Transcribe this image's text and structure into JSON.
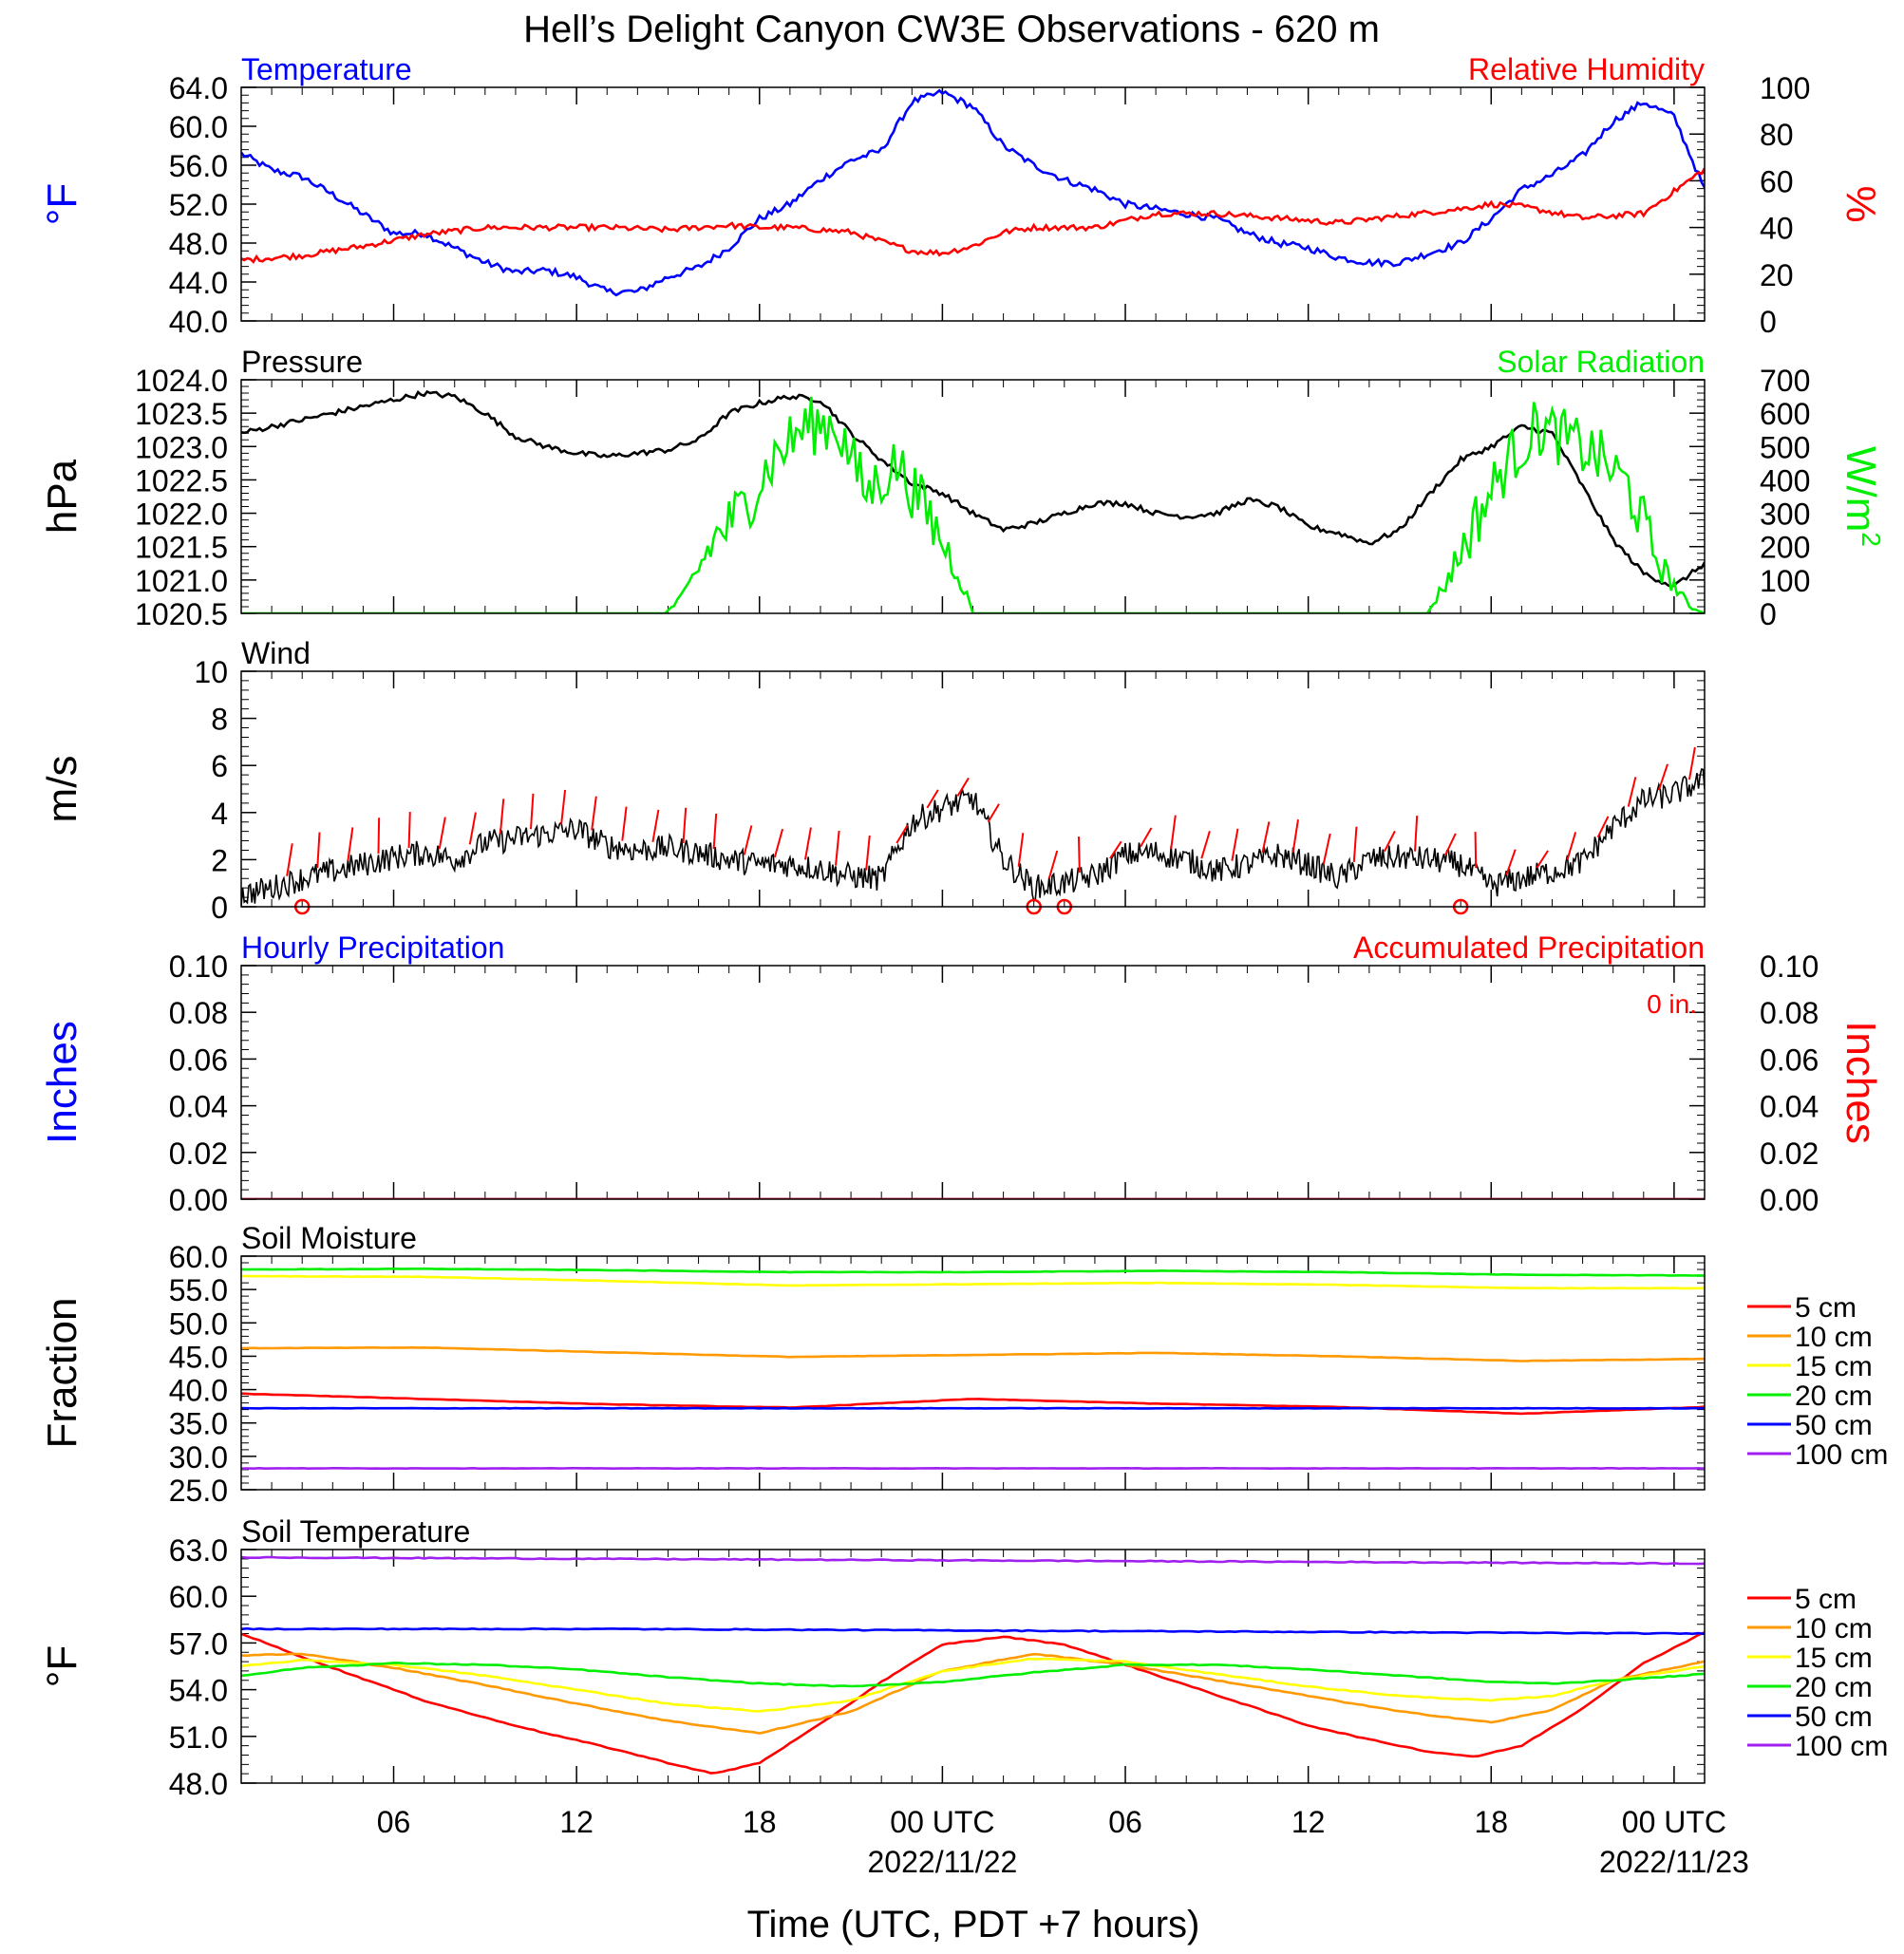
{
  "title": "Hell’s Delight Canyon CW3E Observations - 620 m",
  "x_axis": {
    "title": "Time (UTC, PDT +7 hours)",
    "ticks": [
      {
        "label": "06",
        "sub": "",
        "h": 6
      },
      {
        "label": "12",
        "sub": "",
        "h": 12
      },
      {
        "label": "18",
        "sub": "",
        "h": 18
      },
      {
        "label": "00 UTC",
        "sub": "2022/11/22",
        "h": 24
      },
      {
        "label": "06",
        "sub": "",
        "h": 30
      },
      {
        "label": "12",
        "sub": "",
        "h": 36
      },
      {
        "label": "18",
        "sub": "",
        "h": 42
      },
      {
        "label": "00 UTC",
        "sub": "2022/11/23",
        "h": 48
      }
    ],
    "range_hours": [
      1,
      49
    ]
  },
  "colors": {
    "blue": "#0000ff",
    "red": "#ff0000",
    "green": "#00ee00",
    "black": "#000000",
    "d5": "#ff0000",
    "d10": "#ff9900",
    "d15": "#ffff00",
    "d20": "#00ee00",
    "d50": "#0000ff",
    "d100": "#a020f0"
  },
  "chart_data": [
    {
      "type": "line",
      "panel": "temperature_rh",
      "left_title": "Temperature",
      "right_title": "Relative Humidity",
      "ylabel_left": "°F",
      "ylabel_right": "%",
      "ylim_left": [
        40,
        64
      ],
      "ylim_right": [
        0,
        100
      ],
      "yticks_left": [
        "40.0",
        "44.0",
        "48.0",
        "52.0",
        "56.0",
        "60.0",
        "64.0"
      ],
      "yticks_right": [
        "0",
        "20",
        "40",
        "60",
        "80",
        "100"
      ],
      "series": [
        {
          "axis": "left",
          "color": "blue",
          "x": [
            1,
            2,
            3,
            4,
            5,
            6,
            7,
            8,
            9,
            10,
            11,
            12,
            13,
            14,
            15,
            16,
            17,
            18,
            19,
            20,
            21,
            22,
            23,
            24,
            25,
            26,
            27,
            28,
            29,
            30,
            31,
            32,
            33,
            34,
            35,
            36,
            37,
            38,
            39,
            40,
            41,
            42,
            43,
            44,
            45,
            46,
            47,
            48,
            49
          ],
          "values": [
            57.2,
            55.5,
            54.8,
            53.0,
            51.0,
            49.0,
            49.0,
            47.5,
            46.0,
            45.0,
            45.2,
            44.5,
            43.0,
            43.0,
            44.5,
            45.5,
            47.5,
            50.5,
            52.0,
            54.5,
            56.5,
            57.5,
            62.5,
            63.5,
            62.0,
            58.0,
            56.0,
            54.5,
            53.5,
            52.0,
            51.5,
            51.0,
            50.5,
            49.0,
            48.0,
            47.5,
            46.5,
            46.0,
            46.0,
            47.0,
            48.0,
            50.5,
            53.5,
            55.0,
            57.0,
            60.5,
            62.5,
            61.0,
            53.5
          ]
        },
        {
          "axis": "right",
          "color": "red",
          "x": [
            1,
            3,
            5,
            7,
            9,
            11,
            13,
            15,
            17,
            18,
            19,
            21,
            23,
            24,
            25,
            26,
            27,
            29,
            31,
            33,
            35,
            37,
            39,
            41,
            42,
            43,
            45,
            47,
            49
          ],
          "values": [
            26,
            28,
            32,
            37,
            40,
            40,
            40,
            39,
            41,
            40,
            40,
            38,
            30,
            29,
            32,
            38,
            40,
            40,
            46,
            46,
            44,
            42,
            45,
            48,
            50,
            49,
            44,
            46,
            65
          ]
        }
      ]
    },
    {
      "type": "line",
      "panel": "pressure_solar",
      "left_title": "Pressure",
      "right_title": "Solar Radiation",
      "ylabel_left": "hPa",
      "ylabel_right": "W/m",
      "ylabel_right_sup": "2",
      "ylim_left": [
        1020.5,
        1024.0
      ],
      "ylim_right": [
        0,
        700
      ],
      "yticks_left": [
        "1020.5",
        "1021.0",
        "1021.5",
        "1022.0",
        "1022.5",
        "1023.0",
        "1023.5",
        "1024.0"
      ],
      "yticks_right": [
        "0",
        "100",
        "200",
        "300",
        "400",
        "500",
        "600",
        "700"
      ],
      "series": [
        {
          "axis": "left",
          "color": "black",
          "x": [
            1,
            2,
            3,
            4,
            5,
            6,
            7,
            8,
            9,
            10,
            11,
            12,
            13,
            14,
            15,
            16,
            17,
            18,
            19,
            20,
            21,
            22,
            23,
            24,
            25,
            26,
            27,
            28,
            29,
            30,
            31,
            32,
            33,
            34,
            35,
            36,
            37,
            38,
            39,
            40,
            41,
            42,
            43,
            44,
            45,
            46,
            47,
            48,
            49
          ],
          "values": [
            1023.2,
            1023.3,
            1023.4,
            1023.5,
            1023.6,
            1023.7,
            1023.8,
            1023.75,
            1023.5,
            1023.15,
            1023.0,
            1022.9,
            1022.85,
            1022.9,
            1022.95,
            1023.1,
            1023.5,
            1023.65,
            1023.75,
            1023.7,
            1023.2,
            1022.8,
            1022.45,
            1022.3,
            1022.0,
            1021.75,
            1021.85,
            1022.0,
            1022.15,
            1022.15,
            1022.0,
            1021.95,
            1022.0,
            1022.2,
            1022.1,
            1021.8,
            1021.7,
            1021.55,
            1021.75,
            1022.3,
            1022.8,
            1023.0,
            1023.3,
            1023.2,
            1022.4,
            1021.6,
            1021.1,
            1020.9,
            1021.25
          ]
        },
        {
          "axis": "right",
          "color": "green",
          "x": [
            1,
            14.9,
            15.5,
            16.5,
            17.5,
            18.5,
            19.5,
            20.5,
            21.5,
            22.5,
            23.5,
            24.5,
            25,
            39.9,
            40.5,
            41.5,
            42.5,
            43.5,
            44.5,
            45.5,
            46.5,
            47.5,
            48.5,
            49
          ],
          "values": [
            0,
            0,
            50,
            220,
            320,
            470,
            560,
            570,
            360,
            450,
            300,
            130,
            0,
            0,
            90,
            280,
            450,
            560,
            520,
            470,
            380,
            150,
            20,
            0
          ]
        }
      ]
    },
    {
      "type": "line",
      "panel": "wind",
      "left_title": "Wind",
      "ylabel_left": "m/s",
      "ylim_left": [
        0,
        10
      ],
      "yticks_left": [
        "0",
        "2",
        "4",
        "6",
        "8",
        "10"
      ],
      "series": [
        {
          "axis": "left",
          "color": "black",
          "x": [
            1,
            2,
            3,
            4,
            5,
            6,
            7,
            8,
            9,
            10,
            11,
            12,
            13,
            14,
            15,
            16,
            17,
            18,
            19,
            20,
            21,
            22,
            23,
            24,
            25,
            26,
            27,
            28,
            29,
            30,
            31,
            32,
            33,
            34,
            35,
            36,
            37,
            38,
            39,
            40,
            41,
            42,
            43,
            44,
            45,
            46,
            47,
            48,
            49
          ],
          "values": [
            0.5,
            0.8,
            1.2,
            1.5,
            1.8,
            2.1,
            2.3,
            2.0,
            2.7,
            2.9,
            3.1,
            3.3,
            2.6,
            2.4,
            2.5,
            2.3,
            2.0,
            1.8,
            1.8,
            1.6,
            1.3,
            1.2,
            3.6,
            4.2,
            4.6,
            2.0,
            0.8,
            1.0,
            1.3,
            2.2,
            2.3,
            2.0,
            1.5,
            1.8,
            2.2,
            1.8,
            1.2,
            2.0,
            2.1,
            2.0,
            1.8,
            0.9,
            1.2,
            1.5,
            1.9,
            3.4,
            4.5,
            4.8,
            5.4
          ]
        }
      ],
      "calm_markers_hours": [
        3,
        27,
        28,
        41
      ]
    },
    {
      "type": "line",
      "panel": "precipitation",
      "left_title": "Hourly Precipitation",
      "right_title": "Accumulated Precipitation",
      "annotation": "0 in.",
      "ylabel_left": "Inches",
      "ylabel_right": "Inches",
      "ylim_left": [
        0,
        0.1
      ],
      "ylim_right": [
        0,
        0.1
      ],
      "yticks_left": [
        "0.00",
        "0.02",
        "0.04",
        "0.06",
        "0.08",
        "0.10"
      ],
      "yticks_right": [
        "0.00",
        "0.02",
        "0.04",
        "0.06",
        "0.08",
        "0.10"
      ],
      "series": [
        {
          "axis": "left",
          "color": "blue",
          "x": [
            1,
            49
          ],
          "values": [
            0,
            0
          ]
        },
        {
          "axis": "right",
          "color": "red",
          "x": [
            1,
            49
          ],
          "values": [
            0,
            0
          ]
        }
      ]
    },
    {
      "type": "line",
      "panel": "soil_moisture",
      "left_title": "Soil Moisture",
      "ylabel_left": "Fraction",
      "ylim_left": [
        25,
        60
      ],
      "yticks_left": [
        "25.0",
        "30.0",
        "35.0",
        "40.0",
        "45.0",
        "50.0",
        "55.0",
        "60.0"
      ],
      "legend": [
        "5 cm",
        "10 cm",
        "15 cm",
        "20 cm",
        "50 cm",
        "100 cm"
      ],
      "series": [
        {
          "name": "5 cm",
          "color": "d5",
          "x": [
            1,
            7,
            13,
            19,
            25,
            31,
            37,
            43,
            49
          ],
          "values": [
            39.4,
            38.6,
            37.8,
            37.3,
            38.6,
            37.9,
            37.4,
            36.4,
            37.4
          ]
        },
        {
          "name": "10 cm",
          "color": "d10",
          "x": [
            1,
            7,
            13,
            19,
            25,
            31,
            37,
            43,
            49
          ],
          "values": [
            46.2,
            46.3,
            45.6,
            44.9,
            45.2,
            45.5,
            45.0,
            44.3,
            44.6
          ]
        },
        {
          "name": "15 cm",
          "color": "d15",
          "x": [
            1,
            7,
            13,
            19,
            25,
            31,
            37,
            43,
            49
          ],
          "values": [
            57.0,
            56.9,
            56.3,
            55.6,
            55.8,
            56.0,
            55.7,
            55.2,
            55.2
          ]
        },
        {
          "name": "20 cm",
          "color": "d20",
          "x": [
            1,
            7,
            13,
            19,
            25,
            31,
            37,
            43,
            49
          ],
          "values": [
            58.0,
            58.1,
            57.9,
            57.6,
            57.6,
            57.8,
            57.6,
            57.2,
            57.1
          ]
        },
        {
          "name": "50 cm",
          "color": "d50",
          "x": [
            1,
            49
          ],
          "values": [
            37.2,
            37.2
          ]
        },
        {
          "name": "100 cm",
          "color": "d100",
          "x": [
            1,
            49
          ],
          "values": [
            28.2,
            28.2
          ]
        }
      ]
    },
    {
      "type": "line",
      "panel": "soil_temperature",
      "left_title": "Soil Temperature",
      "ylabel_left": "°F",
      "ylim_left": [
        48,
        63
      ],
      "yticks_left": [
        "48.0",
        "51.0",
        "54.0",
        "57.0",
        "60.0",
        "63.0"
      ],
      "legend": [
        "5 cm",
        "10 cm",
        "15 cm",
        "20 cm",
        "50 cm",
        "100 cm"
      ],
      "series": [
        {
          "name": "5 cm",
          "color": "d5",
          "x": [
            1,
            3,
            5,
            7,
            9,
            11,
            13,
            15,
            16.5,
            18,
            20,
            22,
            24,
            26,
            28,
            30,
            32,
            34,
            36,
            38,
            40,
            41.5,
            43,
            45,
            47,
            49
          ],
          "values": [
            57.6,
            56.1,
            54.7,
            53.3,
            52.2,
            51.2,
            50.3,
            49.3,
            48.6,
            49.3,
            51.8,
            54.5,
            56.9,
            57.4,
            56.9,
            55.6,
            54.3,
            53.0,
            51.7,
            50.8,
            50.0,
            49.7,
            50.4,
            52.8,
            55.7,
            57.7
          ]
        },
        {
          "name": "10 cm",
          "color": "d10",
          "x": [
            1,
            3,
            6,
            9,
            12,
            15,
            18,
            21,
            24,
            27,
            30,
            33,
            36,
            39,
            42,
            44,
            46,
            49
          ],
          "values": [
            56.2,
            56.3,
            55.4,
            54.3,
            53.1,
            52.0,
            51.2,
            52.6,
            55.2,
            56.3,
            55.6,
            54.6,
            53.6,
            52.6,
            51.9,
            52.7,
            54.6,
            55.8
          ]
        },
        {
          "name": "15 cm",
          "color": "d15",
          "x": [
            1,
            3,
            6,
            9,
            12,
            15,
            18,
            21,
            24,
            27,
            30,
            33,
            36,
            39,
            42,
            44,
            46,
            49
          ],
          "values": [
            55.5,
            55.9,
            55.6,
            54.9,
            54.0,
            53.1,
            52.6,
            53.3,
            55.2,
            56.0,
            55.8,
            55.0,
            54.2,
            53.6,
            53.3,
            53.6,
            54.6,
            55.5
          ]
        },
        {
          "name": "20 cm",
          "color": "d20",
          "x": [
            1,
            3,
            6,
            9,
            12,
            15,
            18,
            21,
            24,
            27,
            30,
            33,
            36,
            39,
            42,
            44,
            46,
            49
          ],
          "values": [
            54.9,
            55.4,
            55.7,
            55.6,
            55.3,
            54.8,
            54.4,
            54.2,
            54.5,
            55.1,
            55.6,
            55.6,
            55.3,
            54.9,
            54.5,
            54.4,
            54.6,
            55.0
          ]
        },
        {
          "name": "50 cm",
          "color": "d50",
          "x": [
            1,
            13,
            25,
            37,
            49
          ],
          "values": [
            57.9,
            57.9,
            57.8,
            57.7,
            57.6
          ]
        },
        {
          "name": "100 cm",
          "color": "d100",
          "x": [
            1,
            13,
            25,
            37,
            49
          ],
          "values": [
            62.5,
            62.4,
            62.3,
            62.2,
            62.1
          ]
        }
      ]
    }
  ]
}
